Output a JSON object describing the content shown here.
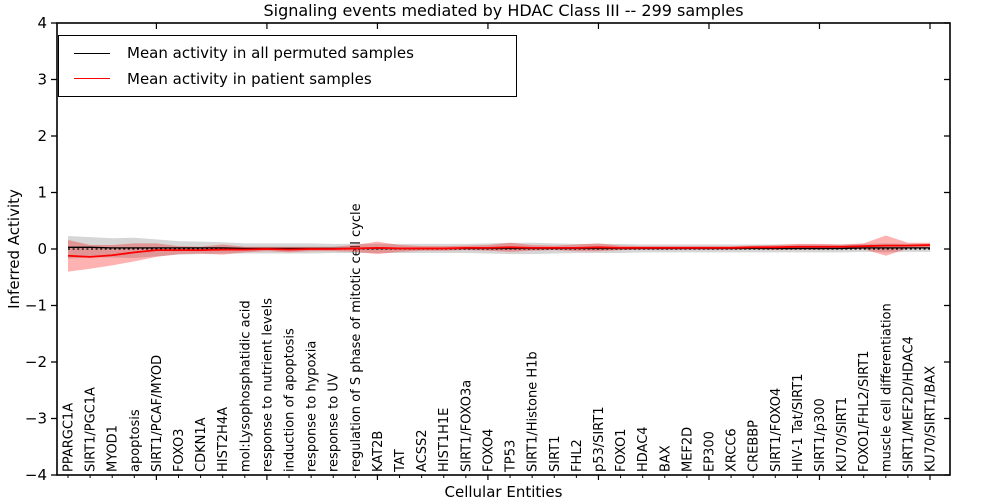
{
  "chart_data": {
    "type": "line",
    "title": "Signaling events mediated by HDAC Class III -- 299 samples",
    "xlabel": "Cellular Entities",
    "ylabel": "Inferred Activity",
    "ylim": [
      -4,
      4
    ],
    "y_ticks": [
      4,
      3,
      2,
      1,
      0,
      -1,
      -2,
      -3,
      -4
    ],
    "grid": false,
    "legend_position": "upper left",
    "zero_line": {
      "y": 0,
      "style": "dashed",
      "color": "#000000"
    },
    "categories": [
      "PPARGC1A",
      "SIRT1/PGC1A",
      "MYOD1",
      "apoptosis",
      "SIRT1/PCAF/MYOD",
      "FOXO3",
      "CDKN1A",
      "HIST2H4A",
      "mol:Lysophosphatidic acid",
      "response to nutrient levels",
      "induction of apoptosis",
      "response to hypoxia",
      "response to UV",
      "regulation of S phase of mitotic cell cycle",
      "KAT2B",
      "TAT",
      "ACSS2",
      "HIST1H1E",
      "SIRT1/FOXO3a",
      "FOXO4",
      "TP53",
      "SIRT1/Histone H1b",
      "SIRT1",
      "FHL2",
      "p53/SIRT1",
      "FOXO1",
      "HDAC4",
      "BAX",
      "MEF2D",
      "EP300",
      "XRCC6",
      "CREBBP",
      "SIRT1/FOXO4",
      "HIV-1 Tat/SIRT1",
      "SIRT1/p300",
      "KU70/SIRT1",
      "FOXO1/FHL2/SIRT1",
      "muscle cell differentiation",
      "SIRT1/MEF2D/HDAC4",
      "KU70/SIRT1/BAX"
    ],
    "series": [
      {
        "name": "Mean activity in all permuted samples",
        "color": "#000000",
        "band_color": "#999999",
        "band_opacity": 0.4,
        "line_width": 1.3,
        "values": [
          0.03,
          0.03,
          0.02,
          0.02,
          0.02,
          0.02,
          0.02,
          0.02,
          0.01,
          0.01,
          0.01,
          0.01,
          0.01,
          0.01,
          0.01,
          0.01,
          0.01,
          0.01,
          0.01,
          0.01,
          0.01,
          0.01,
          0.01,
          0.01,
          0.01,
          0.01,
          0.01,
          0.01,
          0.01,
          0.01,
          0.01,
          0.01,
          0.01,
          0.01,
          0.01,
          0.01,
          0.02,
          0.02,
          0.02,
          0.02
        ],
        "std": [
          0.2,
          0.18,
          0.17,
          0.18,
          0.15,
          0.12,
          0.11,
          0.1,
          0.09,
          0.09,
          0.09,
          0.09,
          0.08,
          0.08,
          0.08,
          0.08,
          0.08,
          0.08,
          0.08,
          0.09,
          0.1,
          0.1,
          0.09,
          0.08,
          0.08,
          0.08,
          0.07,
          0.07,
          0.07,
          0.07,
          0.07,
          0.07,
          0.07,
          0.07,
          0.07,
          0.07,
          0.07,
          0.08,
          0.07,
          0.07
        ]
      },
      {
        "name": "Mean activity in patient samples",
        "color": "#ff0000",
        "band_color": "#ff0000",
        "band_opacity": 0.3,
        "line_width": 1.8,
        "values": [
          -0.12,
          -0.14,
          -0.11,
          -0.06,
          -0.02,
          -0.02,
          -0.02,
          -0.01,
          -0.01,
          0.0,
          -0.01,
          0.0,
          0.0,
          0.01,
          0.02,
          0.01,
          0.01,
          0.01,
          0.02,
          0.02,
          0.03,
          0.02,
          0.02,
          0.02,
          0.03,
          0.02,
          0.02,
          0.02,
          0.02,
          0.02,
          0.02,
          0.03,
          0.03,
          0.04,
          0.04,
          0.04,
          0.05,
          0.06,
          0.06,
          0.07
        ],
        "std": [
          0.28,
          0.21,
          0.18,
          0.16,
          0.12,
          0.07,
          0.06,
          0.09,
          0.05,
          0.04,
          0.05,
          0.04,
          0.04,
          0.06,
          0.11,
          0.06,
          0.04,
          0.04,
          0.04,
          0.05,
          0.08,
          0.05,
          0.04,
          0.06,
          0.07,
          0.04,
          0.03,
          0.03,
          0.03,
          0.03,
          0.03,
          0.03,
          0.04,
          0.05,
          0.05,
          0.04,
          0.05,
          0.18,
          0.05,
          0.04
        ]
      }
    ]
  }
}
